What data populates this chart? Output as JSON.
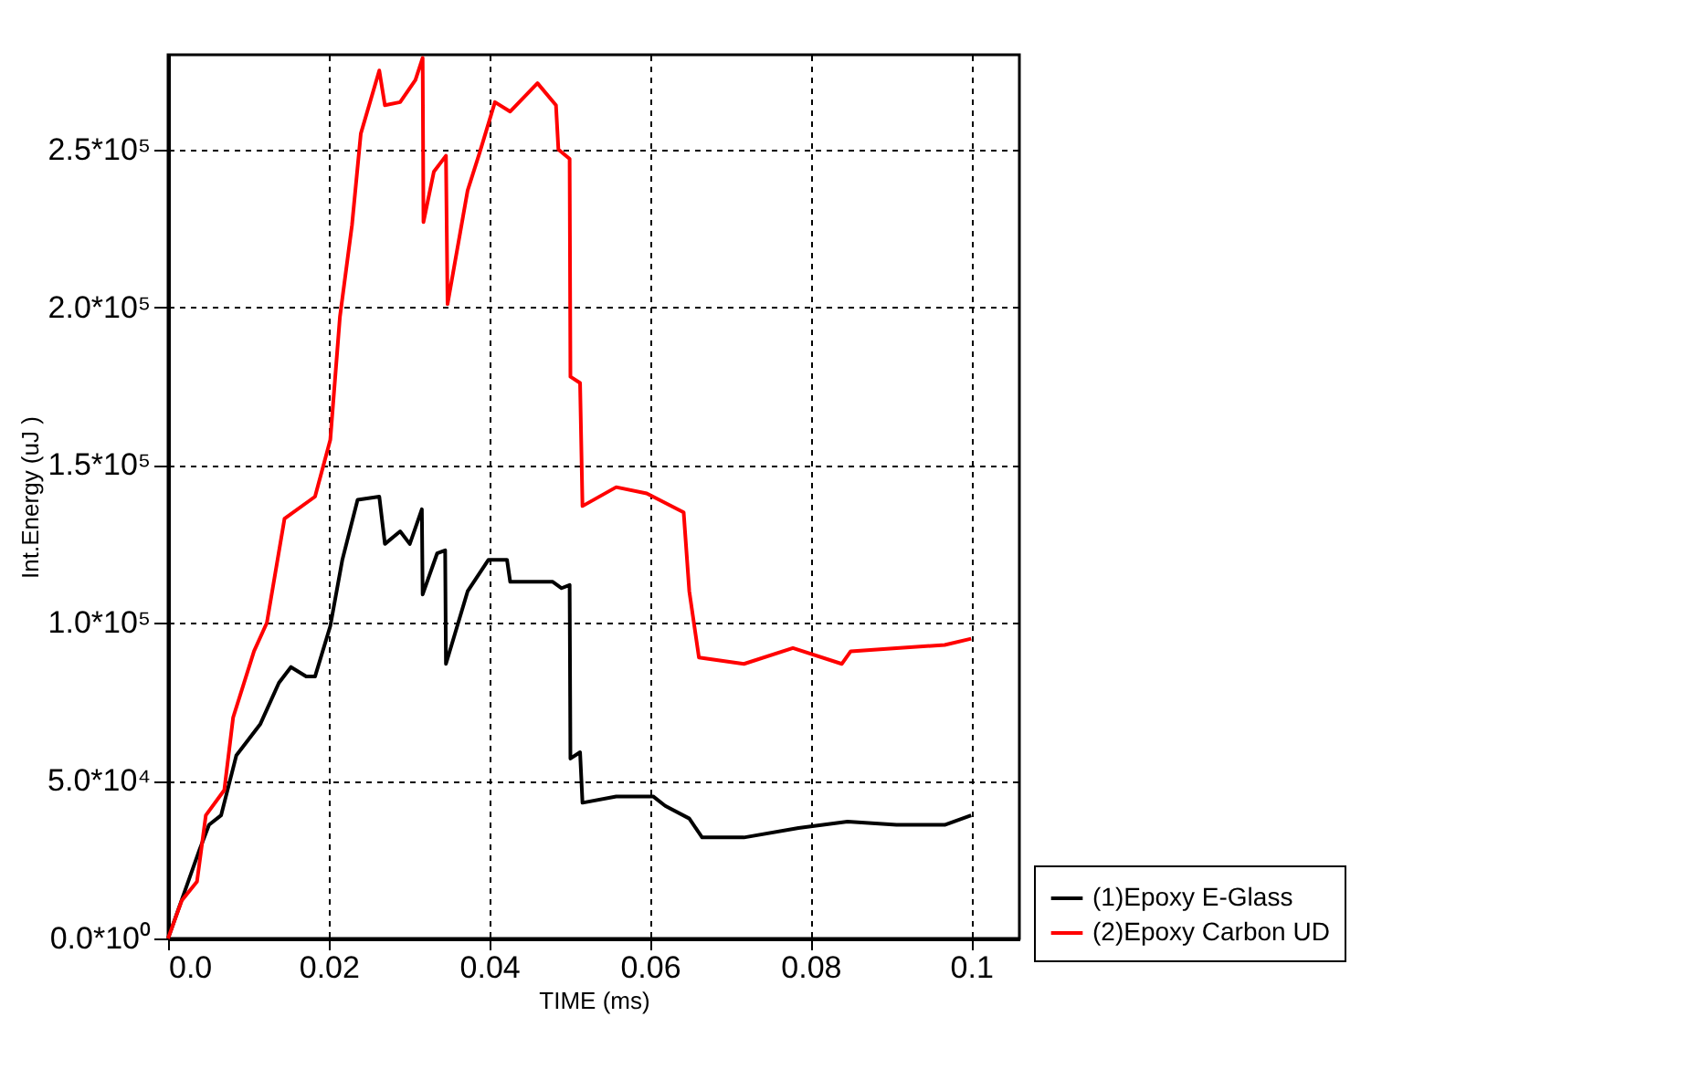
{
  "chart_data": {
    "type": "line",
    "xlabel": "TIME (ms)",
    "ylabel": "Int.Energy (uJ )",
    "xlim": [
      0,
      0.106
    ],
    "ylim": [
      0,
      280000
    ],
    "xticks": [
      {
        "value": 0,
        "label": "0.0"
      },
      0.02,
      0.04,
      0.06,
      0.08,
      0.1
    ],
    "yticks": [
      {
        "value": 0,
        "label": "0.0*10⁰"
      },
      {
        "value": 50000,
        "label": "5.0*10⁴"
      },
      {
        "value": 100000,
        "label": "1.0*10⁵"
      },
      {
        "value": 150000,
        "label": "1.5*10⁵"
      },
      {
        "value": 200000,
        "label": "2.0*10⁵"
      },
      {
        "value": 250000,
        "label": "2.5*10⁵"
      }
    ],
    "grid": true,
    "legend": "bottom right",
    "line_style": "solid",
    "marker": "none",
    "series": [
      {
        "name": "(1)Epoxy E-Glass",
        "color": "#000000",
        "x": [
          0,
          0.0039,
          0.0051,
          0.0066,
          0.0085,
          0.0115,
          0.0138,
          0.0153,
          0.0172,
          0.0183,
          0.0202,
          0.0217,
          0.0236,
          0.0263,
          0.027,
          0.0289,
          0.0301,
          0.0316,
          0.0317,
          0.0335,
          0.0345,
          0.0346,
          0.0373,
          0.0399,
          0.0422,
          0.0426,
          0.0479,
          0.049,
          0.05,
          0.0501,
          0.0513,
          0.0516,
          0.0558,
          0.0604,
          0.0619,
          0.0649,
          0.0665,
          0.0717,
          0.0785,
          0.0846,
          0.0907,
          0.0967,
          0.1
        ],
        "values": [
          0,
          28000,
          36000,
          39000,
          58000,
          68000,
          81000,
          86000,
          83000,
          83000,
          99000,
          120000,
          139000,
          140000,
          125000,
          129000,
          125000,
          136000,
          109000,
          122000,
          123000,
          87000,
          110000,
          120000,
          120000,
          113000,
          113000,
          111000,
          112000,
          57000,
          59000,
          43000,
          45000,
          45000,
          42000,
          38000,
          32000,
          32000,
          35000,
          37000,
          36000,
          36000,
          39000
        ]
      },
      {
        "name": "(2)Epoxy Carbon UD",
        "color": "#ff0000",
        "x": [
          0,
          0.0017,
          0.0036,
          0.0047,
          0.007,
          0.0081,
          0.0107,
          0.0123,
          0.0145,
          0.0183,
          0.0202,
          0.0214,
          0.0229,
          0.024,
          0.0263,
          0.027,
          0.0289,
          0.0308,
          0.0317,
          0.0318,
          0.0331,
          0.0346,
          0.0348,
          0.0373,
          0.0388,
          0.0407,
          0.0426,
          0.046,
          0.0483,
          0.0486,
          0.05,
          0.0501,
          0.0513,
          0.0516,
          0.0558,
          0.0596,
          0.0642,
          0.0649,
          0.0661,
          0.0717,
          0.0778,
          0.0839,
          0.085,
          0.0907,
          0.0967,
          0.1
        ],
        "values": [
          0,
          12000,
          18000,
          39000,
          47000,
          70000,
          91000,
          100000,
          133000,
          140000,
          158000,
          197000,
          226000,
          255000,
          275000,
          264000,
          265000,
          272000,
          279000,
          227000,
          243000,
          248000,
          201000,
          237000,
          249000,
          265000,
          262000,
          271000,
          264000,
          250000,
          247000,
          178000,
          176000,
          137000,
          143000,
          141000,
          135000,
          110000,
          89000,
          87000,
          92000,
          87000,
          91000,
          92000,
          93000,
          95000
        ]
      }
    ]
  }
}
